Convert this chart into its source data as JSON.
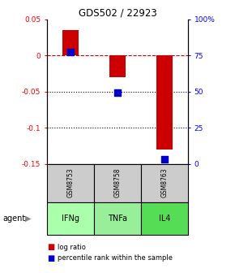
{
  "title": "GDS502 / 22923",
  "samples": [
    "GSM8753",
    "GSM8758",
    "GSM8763"
  ],
  "agents": [
    "IFNg",
    "TNFa",
    "IL4"
  ],
  "log_ratios": [
    0.035,
    -0.03,
    -0.13
  ],
  "percentile_ranks": [
    0.77,
    0.49,
    0.03
  ],
  "ylim_left": [
    -0.15,
    0.05
  ],
  "ylim_right": [
    0.0,
    1.0
  ],
  "bar_color": "#cc0000",
  "dot_color": "#0000cc",
  "hline_zero_color": "#cc0000",
  "hline_grid_color": "#000000",
  "left_yticks": [
    -0.15,
    -0.1,
    -0.05,
    0.0,
    0.05
  ],
  "left_yticklabels": [
    "-0.15",
    "-0.1",
    "-0.05",
    "0",
    "0.05"
  ],
  "right_yticks": [
    0.0,
    0.25,
    0.5,
    0.75,
    1.0
  ],
  "right_yticklabels": [
    "0",
    "25",
    "50",
    "75",
    "100%"
  ],
  "agent_colors": [
    "#aaffaa",
    "#99ee99",
    "#55dd55"
  ],
  "sample_bg_color": "#cccccc",
  "bar_width": 0.35,
  "dot_size": 30
}
